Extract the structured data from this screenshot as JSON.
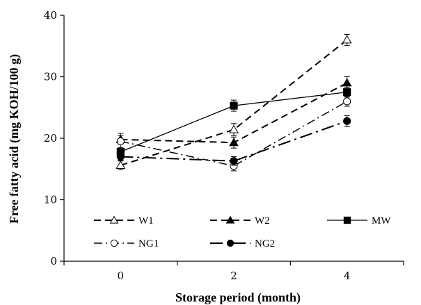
{
  "chart_data": {
    "type": "line",
    "title": "",
    "xlabel": "Storage period (month)",
    "ylabel": "Free fatty acid (mg KOH/100 g)",
    "x": [
      0,
      2,
      4
    ],
    "x_tick_labels": [
      "0",
      "2",
      "4"
    ],
    "xlim": [
      -1,
      5
    ],
    "ylim": [
      0,
      40
    ],
    "y_ticks": [
      0,
      10,
      20,
      30,
      40
    ],
    "y_tick_labels": [
      "0",
      "10",
      "20",
      "30",
      "40"
    ],
    "grid": false,
    "legend": "bottom-inside",
    "series": [
      {
        "name": "W1",
        "values": [
          15.6,
          21.4,
          36.0
        ],
        "errors": [
          0.7,
          1.0,
          0.9
        ],
        "marker": "triangle-open",
        "line": "dashed"
      },
      {
        "name": "W2",
        "values": [
          19.8,
          19.3,
          29.0
        ],
        "errors": [
          0.6,
          0.9,
          1.0
        ],
        "marker": "triangle-filled",
        "line": "dashed"
      },
      {
        "name": "MW",
        "values": [
          17.8,
          25.3,
          27.5
        ],
        "errors": [
          0.7,
          0.9,
          0.8
        ],
        "marker": "square-filled",
        "line": "solid"
      },
      {
        "name": "NG1",
        "values": [
          19.5,
          15.5,
          26.0
        ],
        "errors": [
          1.3,
          0.8,
          0.8
        ],
        "marker": "circle-open",
        "line": "dash-dot"
      },
      {
        "name": "NG2",
        "values": [
          17.0,
          16.3,
          22.8
        ],
        "errors": [
          0.6,
          0.7,
          0.9
        ],
        "marker": "circle-filled",
        "line": "long-dash-dot"
      }
    ]
  }
}
